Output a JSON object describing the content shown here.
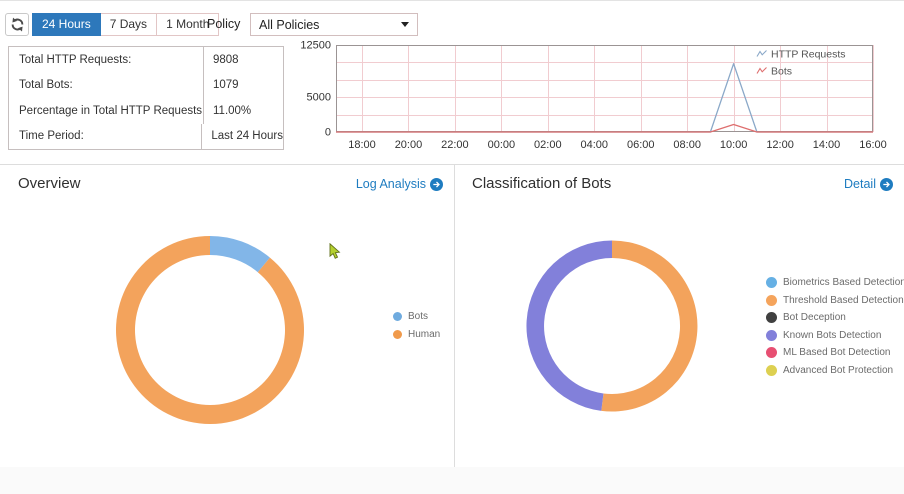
{
  "toolbar": {
    "time_range_buttons": [
      {
        "label": "24 Hours",
        "selected": true
      },
      {
        "label": "7 Days",
        "selected": false
      },
      {
        "label": "1 Month",
        "selected": false
      }
    ],
    "selected_button_color": "#2d78bb",
    "policy_label": "Policy",
    "policy_selected_option": "All Policies"
  },
  "stats_panel": {
    "rows": [
      {
        "label": "Total HTTP Requests:",
        "value": "9808"
      },
      {
        "label": "Total Bots:",
        "value": "1079"
      },
      {
        "label": "Percentage in Total HTTP Requests:",
        "value": "11.00%"
      },
      {
        "label": "Time Period:",
        "value": "Last 24 Hours"
      }
    ]
  },
  "chart_data": [
    {
      "id": "traffic-timeline",
      "type": "line",
      "title": "",
      "x_start": "17:00",
      "x_step_hours": 1,
      "x_tick_labels": [
        "18:00",
        "20:00",
        "22:00",
        "00:00",
        "02:00",
        "04:00",
        "06:00",
        "08:00",
        "10:00",
        "12:00",
        "14:00",
        "16:00"
      ],
      "ylim": [
        0,
        12500
      ],
      "y_ticks": [
        0,
        5000,
        12500
      ],
      "grid": true,
      "grid_color": "#f1ccd0",
      "axis_color": "#9b9494",
      "legend_position": "top-right",
      "series": [
        {
          "name": "HTTP Requests",
          "color": "#8aa8c8",
          "values": [
            0,
            0,
            0,
            0,
            0,
            0,
            0,
            0,
            0,
            0,
            0,
            0,
            0,
            0,
            0,
            0,
            0,
            9808,
            0,
            0,
            0,
            0,
            0,
            0
          ]
        },
        {
          "name": "Bots",
          "color": "#de6e6e",
          "values": [
            0,
            0,
            0,
            0,
            0,
            0,
            0,
            0,
            0,
            0,
            0,
            0,
            0,
            0,
            0,
            0,
            0,
            1079,
            0,
            0,
            0,
            0,
            0,
            0
          ]
        }
      ]
    },
    {
      "id": "overview-donut",
      "type": "donut",
      "start_angle_deg": 0,
      "slices": [
        {
          "label": "Bots",
          "value": 11,
          "color": "#82b6e8"
        },
        {
          "label": "Human",
          "value": 89,
          "color": "#f3a35c"
        }
      ]
    },
    {
      "id": "classification-donut",
      "type": "donut",
      "start_angle_deg": 0,
      "slices": [
        {
          "label": "Biometrics Based Detection",
          "value": 0,
          "color": "#66b0e4"
        },
        {
          "label": "Threshold Based Detection",
          "value": 52,
          "color": "#f3a35c"
        },
        {
          "label": "Bot Deception",
          "value": 0,
          "color": "#404040"
        },
        {
          "label": "Known Bots Detection",
          "value": 48,
          "color": "#8280da"
        },
        {
          "label": "ML Based Bot Detection",
          "value": 0,
          "color": "#e74f72"
        },
        {
          "label": "Advanced Bot Protection",
          "value": 0,
          "color": "#ddd051"
        }
      ]
    }
  ],
  "sections": {
    "link_color": "#1e7cc0",
    "overview": {
      "title": "Overview",
      "link_label": "Log Analysis",
      "legend": [
        {
          "label": "Bots",
          "color": "#6fabdf"
        },
        {
          "label": "Human",
          "color": "#f09a4b"
        }
      ]
    },
    "classification": {
      "title": "Classification of Bots",
      "link_label": "Detail",
      "legend": [
        {
          "label": "Biometrics Based Detection",
          "color": "#66b0e4"
        },
        {
          "label": "Threshold Based Detection",
          "color": "#f5a45c"
        },
        {
          "label": "Bot Deception",
          "color": "#404040"
        },
        {
          "label": "Known Bots Detection",
          "color": "#8280da"
        },
        {
          "label": "ML Based Bot Detection",
          "color": "#e74f72"
        },
        {
          "label": "Advanced Bot Protection",
          "color": "#ddd051"
        }
      ]
    }
  }
}
